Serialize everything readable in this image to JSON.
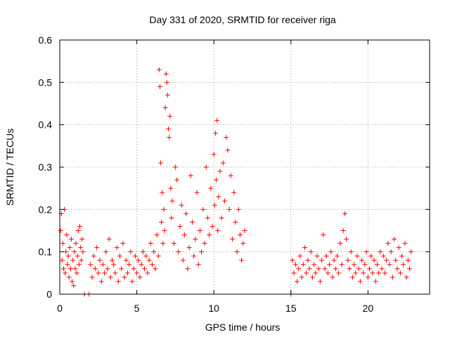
{
  "chart_data": {
    "type": "scatter",
    "title": "Day 331 of 2020, SRMTID for receiver riga",
    "xlabel": "GPS time / hours",
    "ylabel": "SRMTID / TECUs",
    "xlim": [
      0,
      24
    ],
    "ylim": [
      0,
      0.6
    ],
    "xticks": [
      0,
      5,
      10,
      15,
      20
    ],
    "xtick_labels": [
      "0",
      "5",
      "10",
      "15",
      "20"
    ],
    "yticks": [
      0,
      0.1,
      0.2,
      0.3,
      0.4,
      0.5,
      0.6
    ],
    "ytick_labels": [
      "0",
      "0.1",
      "0.2",
      "0.3",
      "0.4",
      "0.5",
      "0.6"
    ],
    "grid": true,
    "marker": "+",
    "color": "#ff0000",
    "series": [
      {
        "name": "SRMTID",
        "points": [
          [
            0.05,
            0.15
          ],
          [
            0.1,
            0.19
          ],
          [
            0.15,
            0.08
          ],
          [
            0.2,
            0.12
          ],
          [
            0.25,
            0.06
          ],
          [
            0.3,
            0.2
          ],
          [
            0.35,
            0.05
          ],
          [
            0.4,
            0.1
          ],
          [
            0.45,
            0.14
          ],
          [
            0.5,
            0.07
          ],
          [
            0.55,
            0.09
          ],
          [
            0.6,
            0.04
          ],
          [
            0.65,
            0.11
          ],
          [
            0.7,
            0.06
          ],
          [
            0.75,
            0.13
          ],
          [
            0.8,
            0.03
          ],
          [
            0.85,
            0.08
          ],
          [
            0.9,
            0.02
          ],
          [
            0.95,
            0.1
          ],
          [
            1.0,
            0.06
          ],
          [
            1.05,
            0.12
          ],
          [
            1.1,
            0.05
          ],
          [
            1.15,
            0.09
          ],
          [
            1.2,
            0.15
          ],
          [
            1.25,
            0.07
          ],
          [
            1.3,
            0.16
          ],
          [
            1.35,
            0.11
          ],
          [
            1.4,
            0.08
          ],
          [
            1.45,
            0.13
          ],
          [
            1.5,
            0.1
          ],
          [
            1.6,
            0.0
          ],
          [
            1.9,
            0.0
          ],
          [
            2.0,
            0.07
          ],
          [
            2.1,
            0.04
          ],
          [
            2.2,
            0.09
          ],
          [
            2.3,
            0.06
          ],
          [
            2.4,
            0.11
          ],
          [
            2.5,
            0.05
          ],
          [
            2.6,
            0.08
          ],
          [
            2.7,
            0.03
          ],
          [
            2.8,
            0.07
          ],
          [
            2.9,
            0.05
          ],
          [
            3.0,
            0.1
          ],
          [
            3.1,
            0.06
          ],
          [
            3.2,
            0.13
          ],
          [
            3.3,
            0.04
          ],
          [
            3.4,
            0.08
          ],
          [
            3.5,
            0.07
          ],
          [
            3.6,
            0.05
          ],
          [
            3.7,
            0.11
          ],
          [
            3.8,
            0.03
          ],
          [
            3.9,
            0.09
          ],
          [
            4.0,
            0.06
          ],
          [
            4.1,
            0.12
          ],
          [
            4.2,
            0.04
          ],
          [
            4.3,
            0.08
          ],
          [
            4.4,
            0.05
          ],
          [
            4.5,
            0.07
          ],
          [
            4.6,
            0.1
          ],
          [
            4.7,
            0.03
          ],
          [
            4.8,
            0.06
          ],
          [
            4.9,
            0.09
          ],
          [
            5.0,
            0.05
          ],
          [
            5.1,
            0.08
          ],
          [
            5.2,
            0.04
          ],
          [
            5.3,
            0.07
          ],
          [
            5.4,
            0.1
          ],
          [
            5.5,
            0.06
          ],
          [
            5.6,
            0.09
          ],
          [
            5.7,
            0.05
          ],
          [
            5.8,
            0.08
          ],
          [
            5.9,
            0.12
          ],
          [
            6.0,
            0.07
          ],
          [
            6.1,
            0.1
          ],
          [
            6.2,
            0.06
          ],
          [
            6.3,
            0.14
          ],
          [
            6.4,
            0.09
          ],
          [
            6.45,
            0.53
          ],
          [
            6.5,
            0.49
          ],
          [
            6.55,
            0.31
          ],
          [
            6.6,
            0.17
          ],
          [
            6.65,
            0.24
          ],
          [
            6.7,
            0.12
          ],
          [
            6.75,
            0.2
          ],
          [
            6.8,
            0.15
          ],
          [
            6.85,
            0.44
          ],
          [
            6.9,
            0.52
          ],
          [
            6.95,
            0.5
          ],
          [
            7.0,
            0.47
          ],
          [
            7.05,
            0.39
          ],
          [
            7.1,
            0.37
          ],
          [
            7.15,
            0.42
          ],
          [
            7.2,
            0.25
          ],
          [
            7.25,
            0.18
          ],
          [
            7.3,
            0.22
          ],
          [
            7.4,
            0.12
          ],
          [
            7.5,
            0.3
          ],
          [
            7.6,
            0.27
          ],
          [
            7.7,
            0.1
          ],
          [
            7.8,
            0.16
          ],
          [
            7.9,
            0.21
          ],
          [
            8.0,
            0.08
          ],
          [
            8.1,
            0.14
          ],
          [
            8.2,
            0.19
          ],
          [
            8.3,
            0.06
          ],
          [
            8.4,
            0.11
          ],
          [
            8.5,
            0.28
          ],
          [
            8.6,
            0.17
          ],
          [
            8.7,
            0.09
          ],
          [
            8.8,
            0.13
          ],
          [
            8.9,
            0.24
          ],
          [
            9.0,
            0.07
          ],
          [
            9.1,
            0.15
          ],
          [
            9.2,
            0.1
          ],
          [
            9.3,
            0.2
          ],
          [
            9.4,
            0.12
          ],
          [
            9.5,
            0.3
          ],
          [
            9.6,
            0.18
          ],
          [
            9.7,
            0.14
          ],
          [
            9.8,
            0.25
          ],
          [
            9.9,
            0.16
          ],
          [
            10.0,
            0.33
          ],
          [
            10.05,
            0.21
          ],
          [
            10.1,
            0.38
          ],
          [
            10.15,
            0.27
          ],
          [
            10.2,
            0.41
          ],
          [
            10.25,
            0.15
          ],
          [
            10.3,
            0.23
          ],
          [
            10.4,
            0.29
          ],
          [
            10.5,
            0.18
          ],
          [
            10.6,
            0.31
          ],
          [
            10.7,
            0.22
          ],
          [
            10.8,
            0.37
          ],
          [
            10.9,
            0.34
          ],
          [
            11.0,
            0.2
          ],
          [
            11.1,
            0.28
          ],
          [
            11.2,
            0.13
          ],
          [
            11.3,
            0.24
          ],
          [
            11.4,
            0.17
          ],
          [
            11.5,
            0.1
          ],
          [
            11.6,
            0.2
          ],
          [
            11.7,
            0.14
          ],
          [
            11.8,
            0.08
          ],
          [
            11.9,
            0.12
          ],
          [
            12.0,
            0.15
          ],
          [
            15.0,
            0.0
          ],
          [
            15.1,
            0.08
          ],
          [
            15.2,
            0.05
          ],
          [
            15.3,
            0.07
          ],
          [
            15.4,
            0.03
          ],
          [
            15.5,
            0.06
          ],
          [
            15.6,
            0.09
          ],
          [
            15.7,
            0.04
          ],
          [
            15.8,
            0.07
          ],
          [
            15.9,
            0.11
          ],
          [
            16.0,
            0.05
          ],
          [
            16.1,
            0.08
          ],
          [
            16.2,
            0.06
          ],
          [
            16.3,
            0.1
          ],
          [
            16.4,
            0.04
          ],
          [
            16.5,
            0.07
          ],
          [
            16.6,
            0.05
          ],
          [
            16.7,
            0.09
          ],
          [
            16.8,
            0.06
          ],
          [
            16.9,
            0.03
          ],
          [
            17.0,
            0.08
          ],
          [
            17.1,
            0.14
          ],
          [
            17.2,
            0.06
          ],
          [
            17.3,
            0.09
          ],
          [
            17.4,
            0.05
          ],
          [
            17.5,
            0.07
          ],
          [
            17.6,
            0.1
          ],
          [
            17.7,
            0.04
          ],
          [
            17.8,
            0.08
          ],
          [
            17.9,
            0.06
          ],
          [
            18.0,
            0.09
          ],
          [
            18.1,
            0.05
          ],
          [
            18.2,
            0.12
          ],
          [
            18.3,
            0.07
          ],
          [
            18.4,
            0.15
          ],
          [
            18.5,
            0.19
          ],
          [
            18.6,
            0.13
          ],
          [
            18.7,
            0.08
          ],
          [
            18.8,
            0.06
          ],
          [
            18.9,
            0.1
          ],
          [
            19.0,
            0.04
          ],
          [
            19.1,
            0.07
          ],
          [
            19.2,
            0.05
          ],
          [
            19.3,
            0.09
          ],
          [
            19.4,
            0.06
          ],
          [
            19.5,
            0.03
          ],
          [
            19.6,
            0.08
          ],
          [
            19.7,
            0.05
          ],
          [
            19.8,
            0.07
          ],
          [
            19.9,
            0.1
          ],
          [
            20.0,
            0.04
          ],
          [
            20.1,
            0.06
          ],
          [
            20.2,
            0.09
          ],
          [
            20.3,
            0.05
          ],
          [
            20.4,
            0.08
          ],
          [
            20.5,
            0.03
          ],
          [
            20.6,
            0.07
          ],
          [
            20.7,
            0.05
          ],
          [
            20.8,
            0.1
          ],
          [
            20.9,
            0.06
          ],
          [
            21.0,
            0.09
          ],
          [
            21.1,
            0.05
          ],
          [
            21.2,
            0.08
          ],
          [
            21.3,
            0.12
          ],
          [
            21.4,
            0.07
          ],
          [
            21.5,
            0.1
          ],
          [
            21.6,
            0.04
          ],
          [
            21.7,
            0.13
          ],
          [
            21.8,
            0.08
          ],
          [
            21.9,
            0.06
          ],
          [
            22.0,
            0.11
          ],
          [
            22.1,
            0.05
          ],
          [
            22.2,
            0.09
          ],
          [
            22.3,
            0.07
          ],
          [
            22.4,
            0.12
          ],
          [
            22.5,
            0.04
          ],
          [
            22.6,
            0.08
          ],
          [
            22.7,
            0.06
          ],
          [
            22.8,
            0.1
          ]
        ]
      }
    ]
  }
}
